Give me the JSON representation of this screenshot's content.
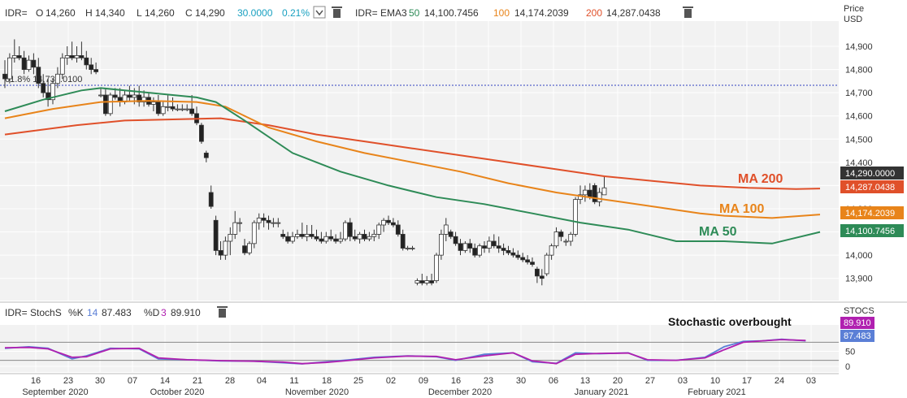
{
  "header": {
    "symbol": "IDR=",
    "ohlc": {
      "o_label": "O",
      "o_value": "14,260",
      "h_label": "H",
      "h_value": "14,340",
      "l_label": "L",
      "l_value": "14,260",
      "c_label": "C",
      "c_value": "14,290",
      "change": "30.0000",
      "change_pct": "0.21%"
    },
    "ema_symbol": "IDR= EMA3",
    "ema": [
      {
        "period": "50",
        "value": "14,100.7456",
        "color": "#2e8b57"
      },
      {
        "period": "100",
        "value": "14,174.2039",
        "color": "#e8841a"
      },
      {
        "period": "200",
        "value": "14,287.0438",
        "color": "#e0502a"
      }
    ]
  },
  "price_axis": {
    "title_line1": "Price",
    "title_line2": "USD",
    "ticks": [
      "14,900",
      "14,800",
      "14,700",
      "14,600",
      "14,500",
      "14,400",
      "14,300",
      "14,200",
      "14,100",
      "14,000",
      "13,900"
    ]
  },
  "fib_label": "61.8%  14,732.0100",
  "annotations": {
    "ma200": "MA 200",
    "ma100": "MA 100",
    "ma50": "MA 50",
    "stoch": "Stochastic overbought"
  },
  "price_tags": {
    "last": "14,290.0000",
    "ma200": "14,287.0438",
    "ma100": "14,174.2039",
    "ma50": "14,100.7456"
  },
  "stoch": {
    "label": "IDR= StochS",
    "k_label": "%K",
    "k_period": "14",
    "k_value": "87.483",
    "d_label": "%D",
    "d_period": "3",
    "d_value": "89.910",
    "axis_title": "STOCS",
    "ticks": [
      "50",
      "0"
    ]
  },
  "x_axis": {
    "days": [
      "16",
      "23",
      "30",
      "07",
      "14",
      "21",
      "28",
      "04",
      "11",
      "18",
      "25",
      "02",
      "09",
      "16",
      "23",
      "30",
      "06",
      "13",
      "20",
      "27",
      "03",
      "10",
      "17",
      "24",
      "03"
    ],
    "months": [
      "September 2020",
      "October 2020",
      "November 2020",
      "December 2020",
      "January 2021",
      "February 2021"
    ]
  },
  "colors": {
    "ma50": "#2e8b57",
    "ma100": "#e8841a",
    "ma200": "#e0502a",
    "stoch_k": "#5b7fd6",
    "stoch_d": "#b020b0",
    "last_tag": "#333333",
    "change": "#18a0c0"
  },
  "chart_data": {
    "type": "line",
    "candles": [
      [
        14780,
        14840,
        14720,
        14760
      ],
      [
        14760,
        14870,
        14740,
        14850
      ],
      [
        14850,
        14930,
        14830,
        14860
      ],
      [
        14860,
        14900,
        14840,
        14850
      ],
      [
        14850,
        14880,
        14780,
        14800
      ],
      [
        14800,
        14860,
        14790,
        14840
      ],
      [
        14840,
        14870,
        14780,
        14810
      ],
      [
        14810,
        14850,
        14720,
        14740
      ],
      [
        14740,
        14780,
        14680,
        14700
      ],
      [
        14700,
        14760,
        14640,
        14670
      ],
      [
        14670,
        14760,
        14650,
        14740
      ],
      [
        14740,
        14810,
        14720,
        14780
      ],
      [
        14780,
        14870,
        14760,
        14850
      ],
      [
        14850,
        14900,
        14820,
        14860
      ],
      [
        14860,
        14920,
        14840,
        14850
      ],
      [
        14850,
        14900,
        14830,
        14860
      ],
      [
        14860,
        14920,
        14840,
        14850
      ],
      [
        14850,
        14880,
        14800,
        14820
      ],
      [
        14820,
        14850,
        14780,
        14800
      ],
      [
        14800,
        14830,
        14780,
        14790
      ],
      [
        14690,
        14720,
        14680,
        14690
      ],
      [
        14690,
        14720,
        14600,
        14610
      ],
      [
        14610,
        14700,
        14600,
        14690
      ],
      [
        14690,
        14720,
        14670,
        14680
      ],
      [
        14680,
        14720,
        14640,
        14660
      ],
      [
        14660,
        14710,
        14650,
        14690
      ],
      [
        14690,
        14730,
        14660,
        14680
      ],
      [
        14680,
        14720,
        14650,
        14690
      ],
      [
        14690,
        14730,
        14640,
        14660
      ],
      [
        14660,
        14710,
        14640,
        14680
      ],
      [
        14680,
        14700,
        14640,
        14650
      ],
      [
        14650,
        14680,
        14620,
        14660
      ],
      [
        14660,
        14690,
        14600,
        14610
      ],
      [
        14610,
        14660,
        14600,
        14640
      ],
      [
        14640,
        14690,
        14620,
        14640
      ],
      [
        14640,
        14680,
        14620,
        14630
      ],
      [
        14630,
        14650,
        14620,
        14630
      ],
      [
        14630,
        14650,
        14620,
        14630
      ],
      [
        14630,
        14650,
        14620,
        14630
      ],
      [
        14630,
        14690,
        14600,
        14610
      ],
      [
        14610,
        14640,
        14560,
        14570
      ],
      [
        14560,
        14570,
        14480,
        14490
      ],
      [
        14440,
        14450,
        14400,
        14420
      ],
      [
        14270,
        14300,
        14200,
        14210
      ],
      [
        14150,
        14170,
        14000,
        14020
      ],
      [
        14020,
        14060,
        13980,
        14000
      ],
      [
        14000,
        14080,
        13980,
        14060
      ],
      [
        14060,
        14120,
        14000,
        14090
      ],
      [
        14090,
        14190,
        14070,
        14140
      ],
      [
        14140,
        14160,
        14100,
        14140
      ],
      [
        14040,
        14070,
        14000,
        14010
      ],
      [
        14010,
        14060,
        14000,
        14050
      ],
      [
        14050,
        14150,
        14030,
        14140
      ],
      [
        14140,
        14180,
        14110,
        14160
      ],
      [
        14160,
        14180,
        14120,
        14150
      ],
      [
        14150,
        14170,
        14110,
        14140
      ],
      [
        14140,
        14160,
        14120,
        14140
      ],
      [
        14140,
        14160,
        14120,
        14140
      ],
      [
        14090,
        14110,
        14070,
        14080
      ],
      [
        14080,
        14100,
        14050,
        14060
      ],
      [
        14060,
        14100,
        14050,
        14080
      ],
      [
        14080,
        14110,
        14070,
        14090
      ],
      [
        14090,
        14140,
        14070,
        14080
      ],
      [
        14080,
        14130,
        14060,
        14090
      ],
      [
        14090,
        14130,
        14070,
        14080
      ],
      [
        14080,
        14110,
        14060,
        14070
      ],
      [
        14070,
        14100,
        14050,
        14060
      ],
      [
        14060,
        14100,
        14050,
        14080
      ],
      [
        14080,
        14110,
        14060,
        14070
      ],
      [
        14070,
        14090,
        14050,
        14060
      ],
      [
        14060,
        14100,
        14050,
        14070
      ],
      [
        14070,
        14150,
        14060,
        14140
      ],
      [
        14140,
        14160,
        14060,
        14080
      ],
      [
        14080,
        14110,
        14060,
        14070
      ],
      [
        14070,
        14100,
        14050,
        14090
      ],
      [
        14090,
        14110,
        14060,
        14070
      ],
      [
        14070,
        14100,
        14060,
        14080
      ],
      [
        14080,
        14110,
        14060,
        14090
      ],
      [
        14090,
        14140,
        14070,
        14130
      ],
      [
        14130,
        14160,
        14100,
        14150
      ],
      [
        14150,
        14170,
        14130,
        14140
      ],
      [
        14140,
        14160,
        14120,
        14130
      ],
      [
        14130,
        14150,
        14080,
        14090
      ],
      [
        14090,
        14110,
        14020,
        14030
      ],
      [
        14030,
        14040,
        14020,
        14030
      ],
      [
        14030,
        14040,
        14020,
        14030
      ],
      [
        13880,
        13900,
        13870,
        13890
      ],
      [
        13890,
        13920,
        13870,
        13880
      ],
      [
        13880,
        13910,
        13870,
        13890
      ],
      [
        13890,
        13920,
        13870,
        13880
      ],
      [
        13890,
        14010,
        13880,
        14000
      ],
      [
        14000,
        14110,
        13980,
        14090
      ],
      [
        14090,
        14160,
        14060,
        14130
      ],
      [
        14100,
        14110,
        14070,
        14080
      ],
      [
        14080,
        14100,
        14040,
        14050
      ],
      [
        14050,
        14070,
        14000,
        14020
      ],
      [
        14020,
        14060,
        14010,
        14050
      ],
      [
        14050,
        14070,
        14010,
        14030
      ],
      [
        14030,
        14050,
        13990,
        14000
      ],
      [
        14000,
        14050,
        13990,
        14040
      ],
      [
        14040,
        14060,
        14010,
        14030
      ],
      [
        14030,
        14080,
        14010,
        14060
      ],
      [
        14060,
        14090,
        14030,
        14040
      ],
      [
        14040,
        14080,
        14010,
        14030
      ],
      [
        14030,
        14050,
        14000,
        14020
      ],
      [
        14020,
        14040,
        14000,
        14010
      ],
      [
        14010,
        14030,
        13990,
        14000
      ],
      [
        14000,
        14020,
        13980,
        13990
      ],
      [
        13990,
        14010,
        13970,
        13980
      ],
      [
        13980,
        14000,
        13960,
        13970
      ],
      [
        13970,
        13990,
        13950,
        13960
      ],
      [
        13940,
        13950,
        13880,
        13910
      ],
      [
        13910,
        13940,
        13870,
        13900
      ],
      [
        13920,
        14010,
        13910,
        14000
      ],
      [
        14000,
        14050,
        13980,
        14040
      ],
      [
        14040,
        14120,
        14030,
        14100
      ],
      [
        14100,
        14110,
        14060,
        14080
      ],
      [
        14060,
        14070,
        14040,
        14060
      ],
      [
        14060,
        14100,
        14040,
        14090
      ],
      [
        14090,
        14250,
        14080,
        14240
      ],
      [
        14240,
        14300,
        14220,
        14260
      ],
      [
        14260,
        14300,
        14230,
        14280
      ],
      [
        14280,
        14310,
        14240,
        14250
      ],
      [
        14300,
        14310,
        14220,
        14230
      ],
      [
        14230,
        14290,
        14210,
        14270
      ],
      [
        14260,
        14340,
        14260,
        14290
      ]
    ],
    "ema50": [
      [
        0,
        14620
      ],
      [
        8,
        14670
      ],
      [
        16,
        14710
      ],
      [
        20,
        14720
      ],
      [
        30,
        14700
      ],
      [
        40,
        14680
      ],
      [
        44,
        14660
      ],
      [
        50,
        14580
      ],
      [
        60,
        14440
      ],
      [
        70,
        14360
      ],
      [
        80,
        14300
      ],
      [
        90,
        14250
      ],
      [
        100,
        14220
      ],
      [
        110,
        14180
      ],
      [
        120,
        14140
      ],
      [
        130,
        14110
      ],
      [
        135,
        14085
      ],
      [
        140,
        14060
      ],
      [
        150,
        14060
      ],
      [
        160,
        14050
      ],
      [
        170,
        14100
      ]
    ],
    "ema100": [
      [
        0,
        14590
      ],
      [
        10,
        14630
      ],
      [
        20,
        14660
      ],
      [
        30,
        14665
      ],
      [
        40,
        14660
      ],
      [
        46,
        14640
      ],
      [
        55,
        14550
      ],
      [
        65,
        14490
      ],
      [
        75,
        14440
      ],
      [
        85,
        14400
      ],
      [
        95,
        14360
      ],
      [
        105,
        14310
      ],
      [
        115,
        14270
      ],
      [
        125,
        14240
      ],
      [
        135,
        14210
      ],
      [
        145,
        14180
      ],
      [
        150,
        14170
      ],
      [
        160,
        14160
      ],
      [
        170,
        14175
      ]
    ],
    "ema200": [
      [
        0,
        14520
      ],
      [
        15,
        14560
      ],
      [
        25,
        14580
      ],
      [
        35,
        14585
      ],
      [
        45,
        14590
      ],
      [
        55,
        14560
      ],
      [
        65,
        14520
      ],
      [
        75,
        14490
      ],
      [
        85,
        14460
      ],
      [
        95,
        14430
      ],
      [
        105,
        14400
      ],
      [
        115,
        14370
      ],
      [
        125,
        14340
      ],
      [
        135,
        14320
      ],
      [
        145,
        14300
      ],
      [
        155,
        14290
      ],
      [
        165,
        14285
      ],
      [
        170,
        14287
      ]
    ],
    "fib_level": 14732.01,
    "stoch_k": [
      [
        0,
        60
      ],
      [
        5,
        65
      ],
      [
        9,
        60
      ],
      [
        14,
        25
      ],
      [
        17,
        35
      ],
      [
        22,
        60
      ],
      [
        28,
        58
      ],
      [
        32,
        25
      ],
      [
        38,
        22
      ],
      [
        45,
        18
      ],
      [
        52,
        17
      ],
      [
        58,
        12
      ],
      [
        62,
        8
      ],
      [
        67,
        15
      ],
      [
        72,
        22
      ],
      [
        77,
        30
      ],
      [
        84,
        35
      ],
      [
        90,
        32
      ],
      [
        94,
        20
      ],
      [
        100,
        40
      ],
      [
        106,
        45
      ],
      [
        110,
        15
      ],
      [
        115,
        10
      ],
      [
        119,
        45
      ],
      [
        124,
        42
      ],
      [
        130,
        45
      ],
      [
        134,
        20
      ],
      [
        140,
        20
      ],
      [
        146,
        30
      ],
      [
        150,
        65
      ],
      [
        154,
        83
      ],
      [
        158,
        85
      ],
      [
        162,
        90
      ],
      [
        167,
        85
      ]
    ],
    "stoch_d": [
      [
        0,
        62
      ],
      [
        5,
        63
      ],
      [
        9,
        58
      ],
      [
        14,
        30
      ],
      [
        17,
        32
      ],
      [
        22,
        58
      ],
      [
        28,
        60
      ],
      [
        32,
        28
      ],
      [
        38,
        22
      ],
      [
        45,
        19
      ],
      [
        52,
        17
      ],
      [
        58,
        14
      ],
      [
        62,
        9
      ],
      [
        67,
        13
      ],
      [
        72,
        20
      ],
      [
        77,
        28
      ],
      [
        84,
        34
      ],
      [
        90,
        33
      ],
      [
        94,
        22
      ],
      [
        100,
        35
      ],
      [
        106,
        45
      ],
      [
        110,
        18
      ],
      [
        115,
        9
      ],
      [
        119,
        40
      ],
      [
        124,
        43
      ],
      [
        130,
        44
      ],
      [
        134,
        22
      ],
      [
        140,
        20
      ],
      [
        146,
        28
      ],
      [
        150,
        55
      ],
      [
        154,
        80
      ],
      [
        158,
        85
      ],
      [
        162,
        89
      ],
      [
        167,
        86
      ]
    ]
  }
}
